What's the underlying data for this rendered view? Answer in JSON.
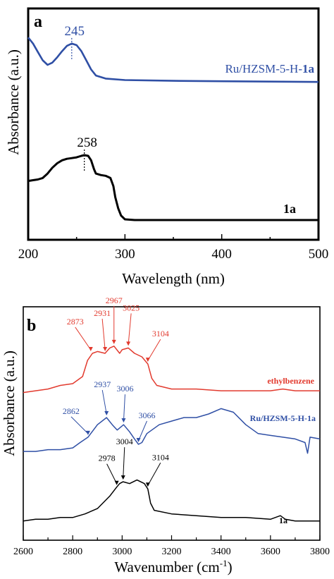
{
  "colors": {
    "red": "#e23a2e",
    "blue": "#2f4fa5",
    "black": "#000000"
  },
  "chart_data": [
    {
      "panel": "a",
      "type": "line",
      "xlabel": "Wavelength (nm)",
      "ylabel": "Absorbance (a.u.)",
      "xlim": [
        200,
        500
      ],
      "xticks": [
        "200",
        "300",
        "400",
        "500"
      ],
      "series": [
        {
          "name": "Ru/HZSM-5-H-1a",
          "label_plain": "Ru/HZSM-5-H-",
          "label_bold": "1a",
          "color": "#2f4fa5",
          "peak_label": "245",
          "peak_x": 245,
          "points": [
            [
              200,
              0.92
            ],
            [
              205,
              0.84
            ],
            [
              210,
              0.73
            ],
            [
              215,
              0.62
            ],
            [
              220,
              0.56
            ],
            [
              225,
              0.59
            ],
            [
              230,
              0.66
            ],
            [
              235,
              0.74
            ],
            [
              240,
              0.81
            ],
            [
              245,
              0.84
            ],
            [
              250,
              0.82
            ],
            [
              255,
              0.74
            ],
            [
              260,
              0.62
            ],
            [
              265,
              0.5
            ],
            [
              270,
              0.42
            ],
            [
              280,
              0.38
            ],
            [
              300,
              0.36
            ],
            [
              350,
              0.35
            ],
            [
              400,
              0.345
            ],
            [
              450,
              0.34
            ],
            [
              500,
              0.335
            ]
          ]
        },
        {
          "name": "1a",
          "label_plain": "",
          "label_bold": "1a",
          "color": "#000000",
          "peak_label": "258",
          "peak_x": 258,
          "points": [
            [
              200,
              0.62
            ],
            [
              205,
              0.63
            ],
            [
              210,
              0.64
            ],
            [
              215,
              0.66
            ],
            [
              220,
              0.72
            ],
            [
              225,
              0.8
            ],
            [
              230,
              0.86
            ],
            [
              235,
              0.9
            ],
            [
              240,
              0.92
            ],
            [
              245,
              0.93
            ],
            [
              250,
              0.94
            ],
            [
              255,
              0.96
            ],
            [
              258,
              0.97
            ],
            [
              262,
              0.96
            ],
            [
              265,
              0.9
            ],
            [
              268,
              0.78
            ],
            [
              270,
              0.72
            ],
            [
              275,
              0.7
            ],
            [
              280,
              0.69
            ],
            [
              285,
              0.66
            ],
            [
              288,
              0.55
            ],
            [
              290,
              0.4
            ],
            [
              293,
              0.25
            ],
            [
              296,
              0.15
            ],
            [
              300,
              0.1
            ],
            [
              310,
              0.09
            ],
            [
              350,
              0.09
            ],
            [
              400,
              0.09
            ],
            [
              450,
              0.09
            ],
            [
              500,
              0.09
            ]
          ]
        }
      ]
    },
    {
      "panel": "b",
      "type": "line",
      "xlabel": "Wavenumber (cm",
      "xlabel_sup": "-1",
      "xlabel_tail": ")",
      "ylabel": "Absorbance (a.u.)",
      "xlim": [
        2600,
        3800
      ],
      "xticks": [
        "2600",
        "2800",
        "3000",
        "3200",
        "3400",
        "3600",
        "3800"
      ],
      "series": [
        {
          "name": "ethylbenzene",
          "color": "#e23a2e",
          "peaks": [
            "2873",
            "2931",
            "2967",
            "3025",
            "3104"
          ],
          "peak_x": [
            2873,
            2931,
            2967,
            3025,
            3104
          ],
          "points": [
            [
              2600,
              0.78
            ],
            [
              2650,
              0.79
            ],
            [
              2700,
              0.8
            ],
            [
              2750,
              0.82
            ],
            [
              2800,
              0.83
            ],
            [
              2840,
              0.87
            ],
            [
              2860,
              0.96
            ],
            [
              2880,
              1.0
            ],
            [
              2900,
              1.01
            ],
            [
              2931,
              1.0
            ],
            [
              2950,
              1.03
            ],
            [
              2967,
              1.04
            ],
            [
              2990,
              1.0
            ],
            [
              3000,
              1.02
            ],
            [
              3025,
              1.03
            ],
            [
              3050,
              1.0
            ],
            [
              3080,
              0.98
            ],
            [
              3104,
              0.94
            ],
            [
              3120,
              0.86
            ],
            [
              3140,
              0.82
            ],
            [
              3200,
              0.8
            ],
            [
              3300,
              0.8
            ],
            [
              3400,
              0.79
            ],
            [
              3500,
              0.79
            ],
            [
              3600,
              0.79
            ],
            [
              3650,
              0.8
            ],
            [
              3700,
              0.79
            ],
            [
              3800,
              0.79
            ]
          ]
        },
        {
          "name": "Ru/HZSM-5-H-1a",
          "color": "#2f4fa5",
          "peaks": [
            "2862",
            "2937",
            "3006",
            "3066"
          ],
          "peak_x": [
            2862,
            2937,
            3006,
            3066
          ],
          "points": [
            [
              2600,
              0.45
            ],
            [
              2650,
              0.45
            ],
            [
              2700,
              0.46
            ],
            [
              2750,
              0.46
            ],
            [
              2800,
              0.47
            ],
            [
              2830,
              0.5
            ],
            [
              2862,
              0.53
            ],
            [
              2900,
              0.6
            ],
            [
              2937,
              0.64
            ],
            [
              2960,
              0.6
            ],
            [
              2980,
              0.57
            ],
            [
              3006,
              0.6
            ],
            [
              3030,
              0.56
            ],
            [
              3050,
              0.52
            ],
            [
              3066,
              0.49
            ],
            [
              3080,
              0.5
            ],
            [
              3100,
              0.55
            ],
            [
              3150,
              0.6
            ],
            [
              3200,
              0.62
            ],
            [
              3250,
              0.64
            ],
            [
              3300,
              0.64
            ],
            [
              3350,
              0.66
            ],
            [
              3400,
              0.69
            ],
            [
              3450,
              0.67
            ],
            [
              3500,
              0.6
            ],
            [
              3550,
              0.55
            ],
            [
              3600,
              0.54
            ],
            [
              3650,
              0.53
            ],
            [
              3700,
              0.52
            ],
            [
              3740,
              0.5
            ],
            [
              3750,
              0.44
            ],
            [
              3760,
              0.53
            ],
            [
              3800,
              0.52
            ]
          ]
        },
        {
          "name": "1a",
          "color": "#000000",
          "peaks": [
            "2978",
            "3004",
            "3104"
          ],
          "peak_x": [
            2978,
            3004,
            3104
          ],
          "points": [
            [
              2600,
              0.06
            ],
            [
              2650,
              0.07
            ],
            [
              2700,
              0.07
            ],
            [
              2750,
              0.08
            ],
            [
              2800,
              0.08
            ],
            [
              2850,
              0.1
            ],
            [
              2900,
              0.13
            ],
            [
              2950,
              0.2
            ],
            [
              2978,
              0.25
            ],
            [
              2990,
              0.27
            ],
            [
              3004,
              0.28
            ],
            [
              3030,
              0.27
            ],
            [
              3060,
              0.29
            ],
            [
              3090,
              0.27
            ],
            [
              3104,
              0.24
            ],
            [
              3115,
              0.16
            ],
            [
              3130,
              0.12
            ],
            [
              3200,
              0.1
            ],
            [
              3300,
              0.09
            ],
            [
              3400,
              0.08
            ],
            [
              3500,
              0.08
            ],
            [
              3600,
              0.07
            ],
            [
              3640,
              0.09
            ],
            [
              3660,
              0.07
            ],
            [
              3700,
              0.06
            ],
            [
              3800,
              0.06
            ]
          ]
        }
      ]
    }
  ]
}
